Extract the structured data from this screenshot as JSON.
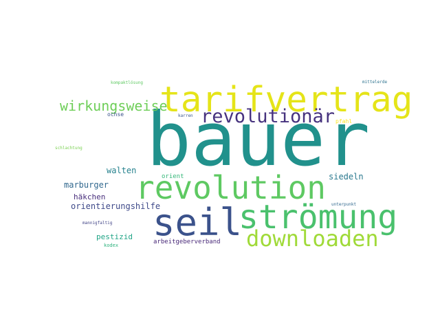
{
  "cloud": {
    "words": [
      {
        "text": "bauer",
        "color": "#21918c"
      },
      {
        "text": "tarifvertrag",
        "color": "#e5e419"
      },
      {
        "text": "revolution",
        "color": "#5ec962"
      },
      {
        "text": "seil",
        "color": "#3b528b"
      },
      {
        "text": "strömung",
        "color": "#4ac16d"
      },
      {
        "text": "downloaden",
        "color": "#a0da39"
      },
      {
        "text": "revolutionär",
        "color": "#46327e"
      },
      {
        "text": "wirkungsweise",
        "color": "#6ece58"
      },
      {
        "text": "walten",
        "color": "#26828e"
      },
      {
        "text": "marburger",
        "color": "#31688e"
      },
      {
        "text": "orientierungshilfe",
        "color": "#3e4989"
      },
      {
        "text": "häkchen",
        "color": "#472d7b"
      },
      {
        "text": "siedeln",
        "color": "#2a788e"
      },
      {
        "text": "pestizid",
        "color": "#20a486"
      },
      {
        "text": "orient",
        "color": "#35b779"
      },
      {
        "text": "arbeitgeberverband",
        "color": "#482878"
      },
      {
        "text": "kodex",
        "color": "#2db27d"
      },
      {
        "text": "ochse",
        "color": "#3b528b"
      },
      {
        "text": "pfahl",
        "color": "#fde725"
      },
      {
        "text": "karren",
        "color": "#39568c"
      },
      {
        "text": "unterpunkt",
        "color": "#31688e"
      },
      {
        "text": "mannigfaltig",
        "color": "#414487"
      },
      {
        "text": "schlachtung",
        "color": "#7ad151"
      },
      {
        "text": "kompaktlösung",
        "color": "#5ec962"
      },
      {
        "text": "mittelerde",
        "color": "#2c728e"
      }
    ]
  }
}
